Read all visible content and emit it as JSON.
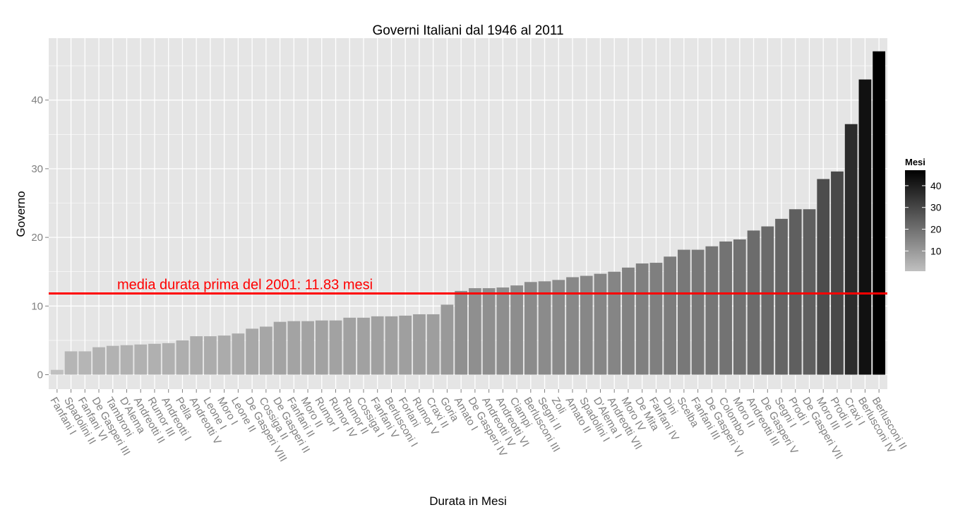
{
  "chart_data": {
    "type": "bar",
    "title": "Governi Italiani dal 1946 al 2011",
    "xlabel": "Durata in Mesi",
    "ylabel": "Governo",
    "ylim": [
      -2.3,
      49.3
    ],
    "yticks": [
      0,
      10,
      20,
      30,
      40
    ],
    "grid": true,
    "categories": [
      "Fanfani I",
      "Spadolini II",
      "Fanfani VI",
      "De Gasperi III",
      "Tambroni",
      "D'Alema",
      "Andreotti II",
      "Rumor III",
      "Andreotti I",
      "Pella",
      "Andreotti V",
      "Leone I",
      "Moro I",
      "Leone II",
      "De Gasperi VIII",
      "Cossiga II",
      "De Gasperi II",
      "Fanfani II",
      "Moro II",
      "Rumor I",
      "Rumor IV",
      "Rumor II",
      "Cossiga I",
      "Fanfani V",
      "Berlusconi I",
      "Forlani",
      "Rumor V",
      "Craxi II",
      "Goria",
      "Amato I",
      "De Gasperi IV",
      "Andreotti IV",
      "Andreotti VI",
      "Ciampi",
      "Berlusconi III",
      "Segni II",
      "Zoli",
      "Amato II",
      "Spadolini I",
      "D'Alema I",
      "Andreotti VII",
      "Moro IV",
      "De Mita",
      "Fanfani IV",
      "Dini",
      "Scelba",
      "Fanfani III",
      "De Gasperi VI",
      "Colombo",
      "Moro II",
      "Andreotti III",
      "De Gasperi V",
      "Segni I",
      "Prodi I",
      "De Gasperi VII",
      "Moro III",
      "Prodi II",
      "Craxi I",
      "Berlusconi IV",
      "Berlusconi II"
    ],
    "values": [
      0.7,
      3.4,
      3.4,
      4.0,
      4.2,
      4.3,
      4.4,
      4.5,
      4.6,
      5.0,
      5.6,
      5.6,
      5.7,
      6.0,
      6.7,
      7.0,
      7.7,
      7.8,
      7.8,
      7.9,
      7.9,
      8.3,
      8.3,
      8.5,
      8.5,
      8.6,
      8.8,
      8.8,
      10.2,
      12.2,
      12.6,
      12.6,
      12.7,
      13.0,
      13.5,
      13.6,
      13.8,
      14.2,
      14.4,
      14.7,
      15.0,
      15.6,
      16.2,
      16.3,
      17.2,
      18.2,
      18.2,
      18.7,
      19.4,
      19.7,
      21.0,
      21.6,
      22.7,
      24.1,
      24.1,
      28.5,
      29.6,
      36.5,
      43.0,
      47.1
    ],
    "hline": {
      "value": 11.83,
      "label": "media durata prima del 2001: 11.83 mesi",
      "color": "#ff0000"
    },
    "legend": {
      "title": "Mesi",
      "position": "right",
      "ticks": [
        10,
        20,
        30,
        40
      ],
      "range": [
        0.7,
        47.1
      ],
      "low_color": "#c0c0c0",
      "high_color": "#000000"
    },
    "panel_bg": "#e5e5e5",
    "grid_color": "#ffffff"
  }
}
